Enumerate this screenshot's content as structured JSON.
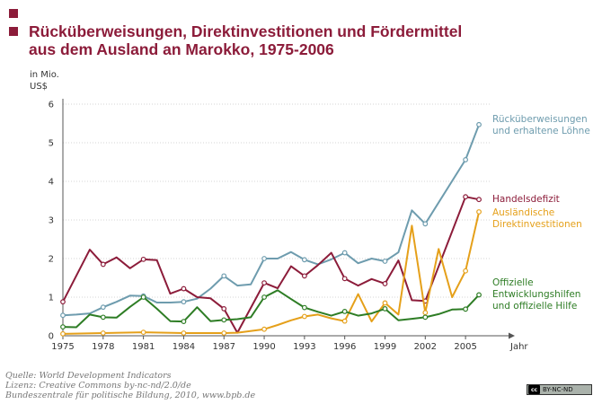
{
  "header": {
    "title_line1": "Rücküberweisungen, Direktinvestitionen und Fördermittel",
    "title_line2": "aus dem Ausland an Marokko, 1975-2006"
  },
  "colors": {
    "title": "#8c1c3a",
    "remittances": "#6e9cae",
    "trade_deficit": "#8c1c3a",
    "fdi": "#e5a01a",
    "aid": "#2e7d25"
  },
  "chart_data": {
    "type": "line",
    "ylabel_line1": "in Mio.",
    "ylabel_line2": "US$",
    "xlabel": "Jahr",
    "xlim": [
      1975,
      2006.8
    ],
    "ylim": [
      0,
      6
    ],
    "x_ticks": [
      "1975",
      "1978",
      "1981",
      "1984",
      "1987",
      "1990",
      "1993",
      "1996",
      "1999",
      "2002",
      "2005"
    ],
    "y_ticks": [
      "0",
      "1",
      "2",
      "3",
      "4",
      "5",
      "6"
    ],
    "legend": "direct labels at line ends",
    "series": [
      {
        "key": "remittances",
        "label_lines": [
          "Rücküberweisungen",
          "und erhaltene Löhne"
        ],
        "color": "#6e9cae",
        "x": [
          1975,
          1976,
          1977,
          1978,
          1979,
          1980,
          1981,
          1982,
          1983,
          1984,
          1985,
          1986,
          1987,
          1988,
          1989,
          1990,
          1991,
          1992,
          1993,
          1994,
          1995,
          1996,
          1997,
          1998,
          1999,
          2000,
          2001,
          2002,
          2005,
          2006
        ],
        "y": [
          0.53,
          0.55,
          0.58,
          0.74,
          0.88,
          1.04,
          1.03,
          0.86,
          0.86,
          0.88,
          0.96,
          1.22,
          1.55,
          1.3,
          1.33,
          2.0,
          2.0,
          2.17,
          1.97,
          1.85,
          1.98,
          2.15,
          1.88,
          2.0,
          1.93,
          2.16,
          3.25,
          2.9,
          4.56,
          5.47
        ],
        "markers": [
          1975,
          1978,
          1981,
          1984,
          1987,
          1990,
          1993,
          1996,
          1999,
          2002,
          2005,
          2006
        ]
      },
      {
        "key": "trade_deficit",
        "label_lines": [
          "Handelsdefizit"
        ],
        "color": "#8c1c3a",
        "x": [
          1975,
          1977,
          1978,
          1979,
          1980,
          1981,
          1982,
          1983,
          1984,
          1985,
          1986,
          1987,
          1988,
          1990,
          1991,
          1992,
          1993,
          1994,
          1995,
          1996,
          1997,
          1998,
          1999,
          2000,
          2001,
          2002,
          2005,
          2006
        ],
        "y": [
          0.88,
          2.23,
          1.85,
          2.03,
          1.75,
          1.98,
          1.96,
          1.09,
          1.22,
          1.0,
          0.97,
          0.7,
          0.08,
          1.37,
          1.23,
          1.8,
          1.55,
          1.83,
          2.15,
          1.48,
          1.3,
          1.47,
          1.35,
          1.95,
          0.92,
          0.9,
          3.6,
          3.53
        ],
        "markers": [
          1975,
          1978,
          1981,
          1984,
          1987,
          1990,
          1993,
          1996,
          1999,
          2002,
          2005,
          2006
        ]
      },
      {
        "key": "fdi",
        "label_lines": [
          "Ausländische",
          "Direktinvestitionen"
        ],
        "color": "#e5a01a",
        "x": [
          1975,
          1978,
          1981,
          1984,
          1987,
          1988,
          1990,
          1991,
          1992,
          1993,
          1994,
          1995,
          1996,
          1997,
          1998,
          1999,
          2000,
          2001,
          2002,
          2003,
          2004,
          2005,
          2006
        ],
        "y": [
          0.05,
          0.07,
          0.09,
          0.07,
          0.07,
          0.08,
          0.17,
          0.28,
          0.4,
          0.5,
          0.55,
          0.45,
          0.38,
          1.08,
          0.37,
          0.85,
          0.55,
          2.85,
          0.6,
          2.25,
          1.0,
          1.68,
          3.21
        ],
        "markers": [
          1975,
          1978,
          1981,
          1984,
          1987,
          1990,
          1993,
          1996,
          1999,
          2002,
          2005,
          2006
        ]
      },
      {
        "key": "aid",
        "label_lines": [
          "Offizielle",
          "Entwicklungshilfen",
          "und offizielle Hilfe"
        ],
        "color": "#2e7d25",
        "x": [
          1975,
          1976,
          1977,
          1978,
          1979,
          1980,
          1981,
          1982,
          1983,
          1984,
          1985,
          1986,
          1987,
          1988,
          1989,
          1990,
          1991,
          1992,
          1993,
          1994,
          1995,
          1996,
          1997,
          1998,
          1999,
          2000,
          2001,
          2002,
          2003,
          2004,
          2005,
          2006
        ],
        "y": [
          0.23,
          0.22,
          0.55,
          0.48,
          0.47,
          0.75,
          1.0,
          0.7,
          0.38,
          0.37,
          0.74,
          0.38,
          0.41,
          0.43,
          0.48,
          1.0,
          1.18,
          0.95,
          0.73,
          0.62,
          0.52,
          0.63,
          0.52,
          0.58,
          0.7,
          0.4,
          0.44,
          0.48,
          0.56,
          0.68,
          0.69,
          1.06
        ],
        "markers": [
          1975,
          1978,
          1981,
          1984,
          1987,
          1990,
          1993,
          1996,
          1999,
          2002,
          2005,
          2006
        ]
      }
    ]
  },
  "footer": {
    "source_lines": [
      "Quelle:  World Development Indicators",
      "Lizenz: Creative Commons by-nc-nd/2.0/de",
      "Bundeszentrale für politische Bildung, 2010, www.bpb.de"
    ],
    "license_badge_icon": "cc-logo-icon",
    "license_badge_text": "BY-NC-ND"
  }
}
